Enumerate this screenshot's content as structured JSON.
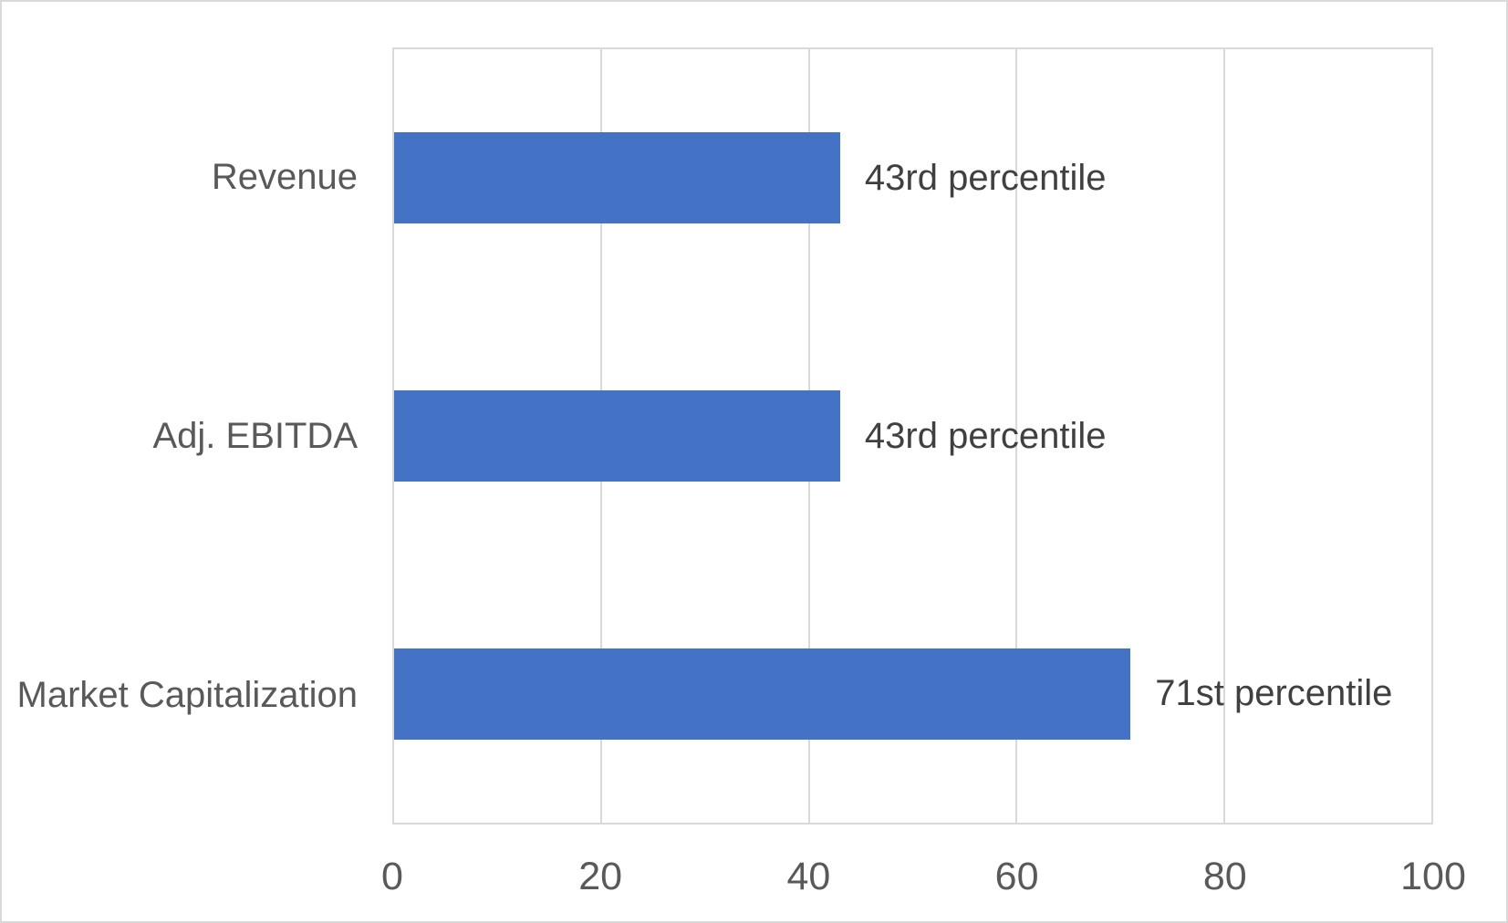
{
  "chart_data": {
    "type": "bar",
    "orientation": "horizontal",
    "title": "",
    "xlabel": "",
    "ylabel": "",
    "xlim": [
      0,
      100
    ],
    "grid": "vertical-only",
    "legend": "none",
    "categories": [
      "Revenue",
      "Adj. EBITDA",
      "Market Capitalization"
    ],
    "values": [
      43,
      43,
      71
    ],
    "data_labels": [
      "43rd percentile",
      "43rd percentile",
      "71st percentile"
    ],
    "x_ticks": [
      "0",
      "20",
      "40",
      "60",
      "80",
      "100"
    ],
    "gridline_positions": [
      20,
      40,
      60,
      80
    ],
    "colors": {
      "bar": "#4472C4",
      "gridline": "#D9D9D9",
      "category_text": "#595959",
      "tick_text": "#595959",
      "data_label_text": "#404040",
      "background": "#FFFFFF"
    }
  }
}
